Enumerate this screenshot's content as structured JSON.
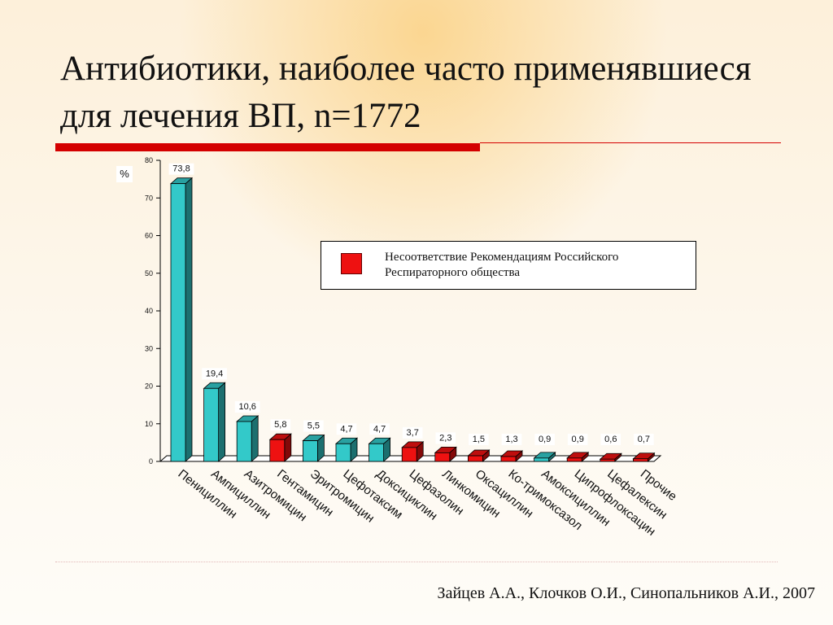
{
  "title": "Антибиотики, наиболее часто применявшиеся для лечения ВП, n=1772",
  "citation": "Зайцев А.А., Клочков О.И., Синопальников А.И., 2007",
  "colors": {
    "accent": "#d40000",
    "bar_ok": "#33c9c9",
    "bar_flag": "#ee1111"
  },
  "legend": {
    "label": "Несоответствие Рекомендациям Российского Респираторного общества"
  },
  "chart_data": {
    "type": "bar",
    "ylabel": "%",
    "ylim": [
      0,
      80
    ],
    "yticks": [
      0,
      10,
      20,
      30,
      40,
      50,
      60,
      70,
      80
    ],
    "grid": false,
    "legend_position": "top-right",
    "categories": [
      "Пенициллин",
      "Ампициллин",
      "Азитромицин",
      "Гентамицин",
      "Эритромицин",
      "Цефотаксим",
      "Доксициклин",
      "Цефазолин",
      "Линкомицин",
      "Оксациллин",
      "Ко-тримоксазол",
      "Амоксициллин",
      "Ципрофлоксацин",
      "Цефалексин",
      "Прочие"
    ],
    "values": [
      73.8,
      19.4,
      10.6,
      5.8,
      5.5,
      4.7,
      4.7,
      3.7,
      2.3,
      1.5,
      1.3,
      0.9,
      0.9,
      0.6,
      0.7
    ],
    "value_labels": [
      "73,8",
      "19,4",
      "10,6",
      "5,8",
      "5,5",
      "4,7",
      "4,7",
      "3,7",
      "2,3",
      "1,5",
      "1,3",
      "0,9",
      "0,9",
      "0,6",
      "0,7"
    ],
    "nonconforming": [
      false,
      false,
      false,
      true,
      false,
      false,
      false,
      true,
      true,
      true,
      true,
      false,
      true,
      true,
      true
    ]
  }
}
